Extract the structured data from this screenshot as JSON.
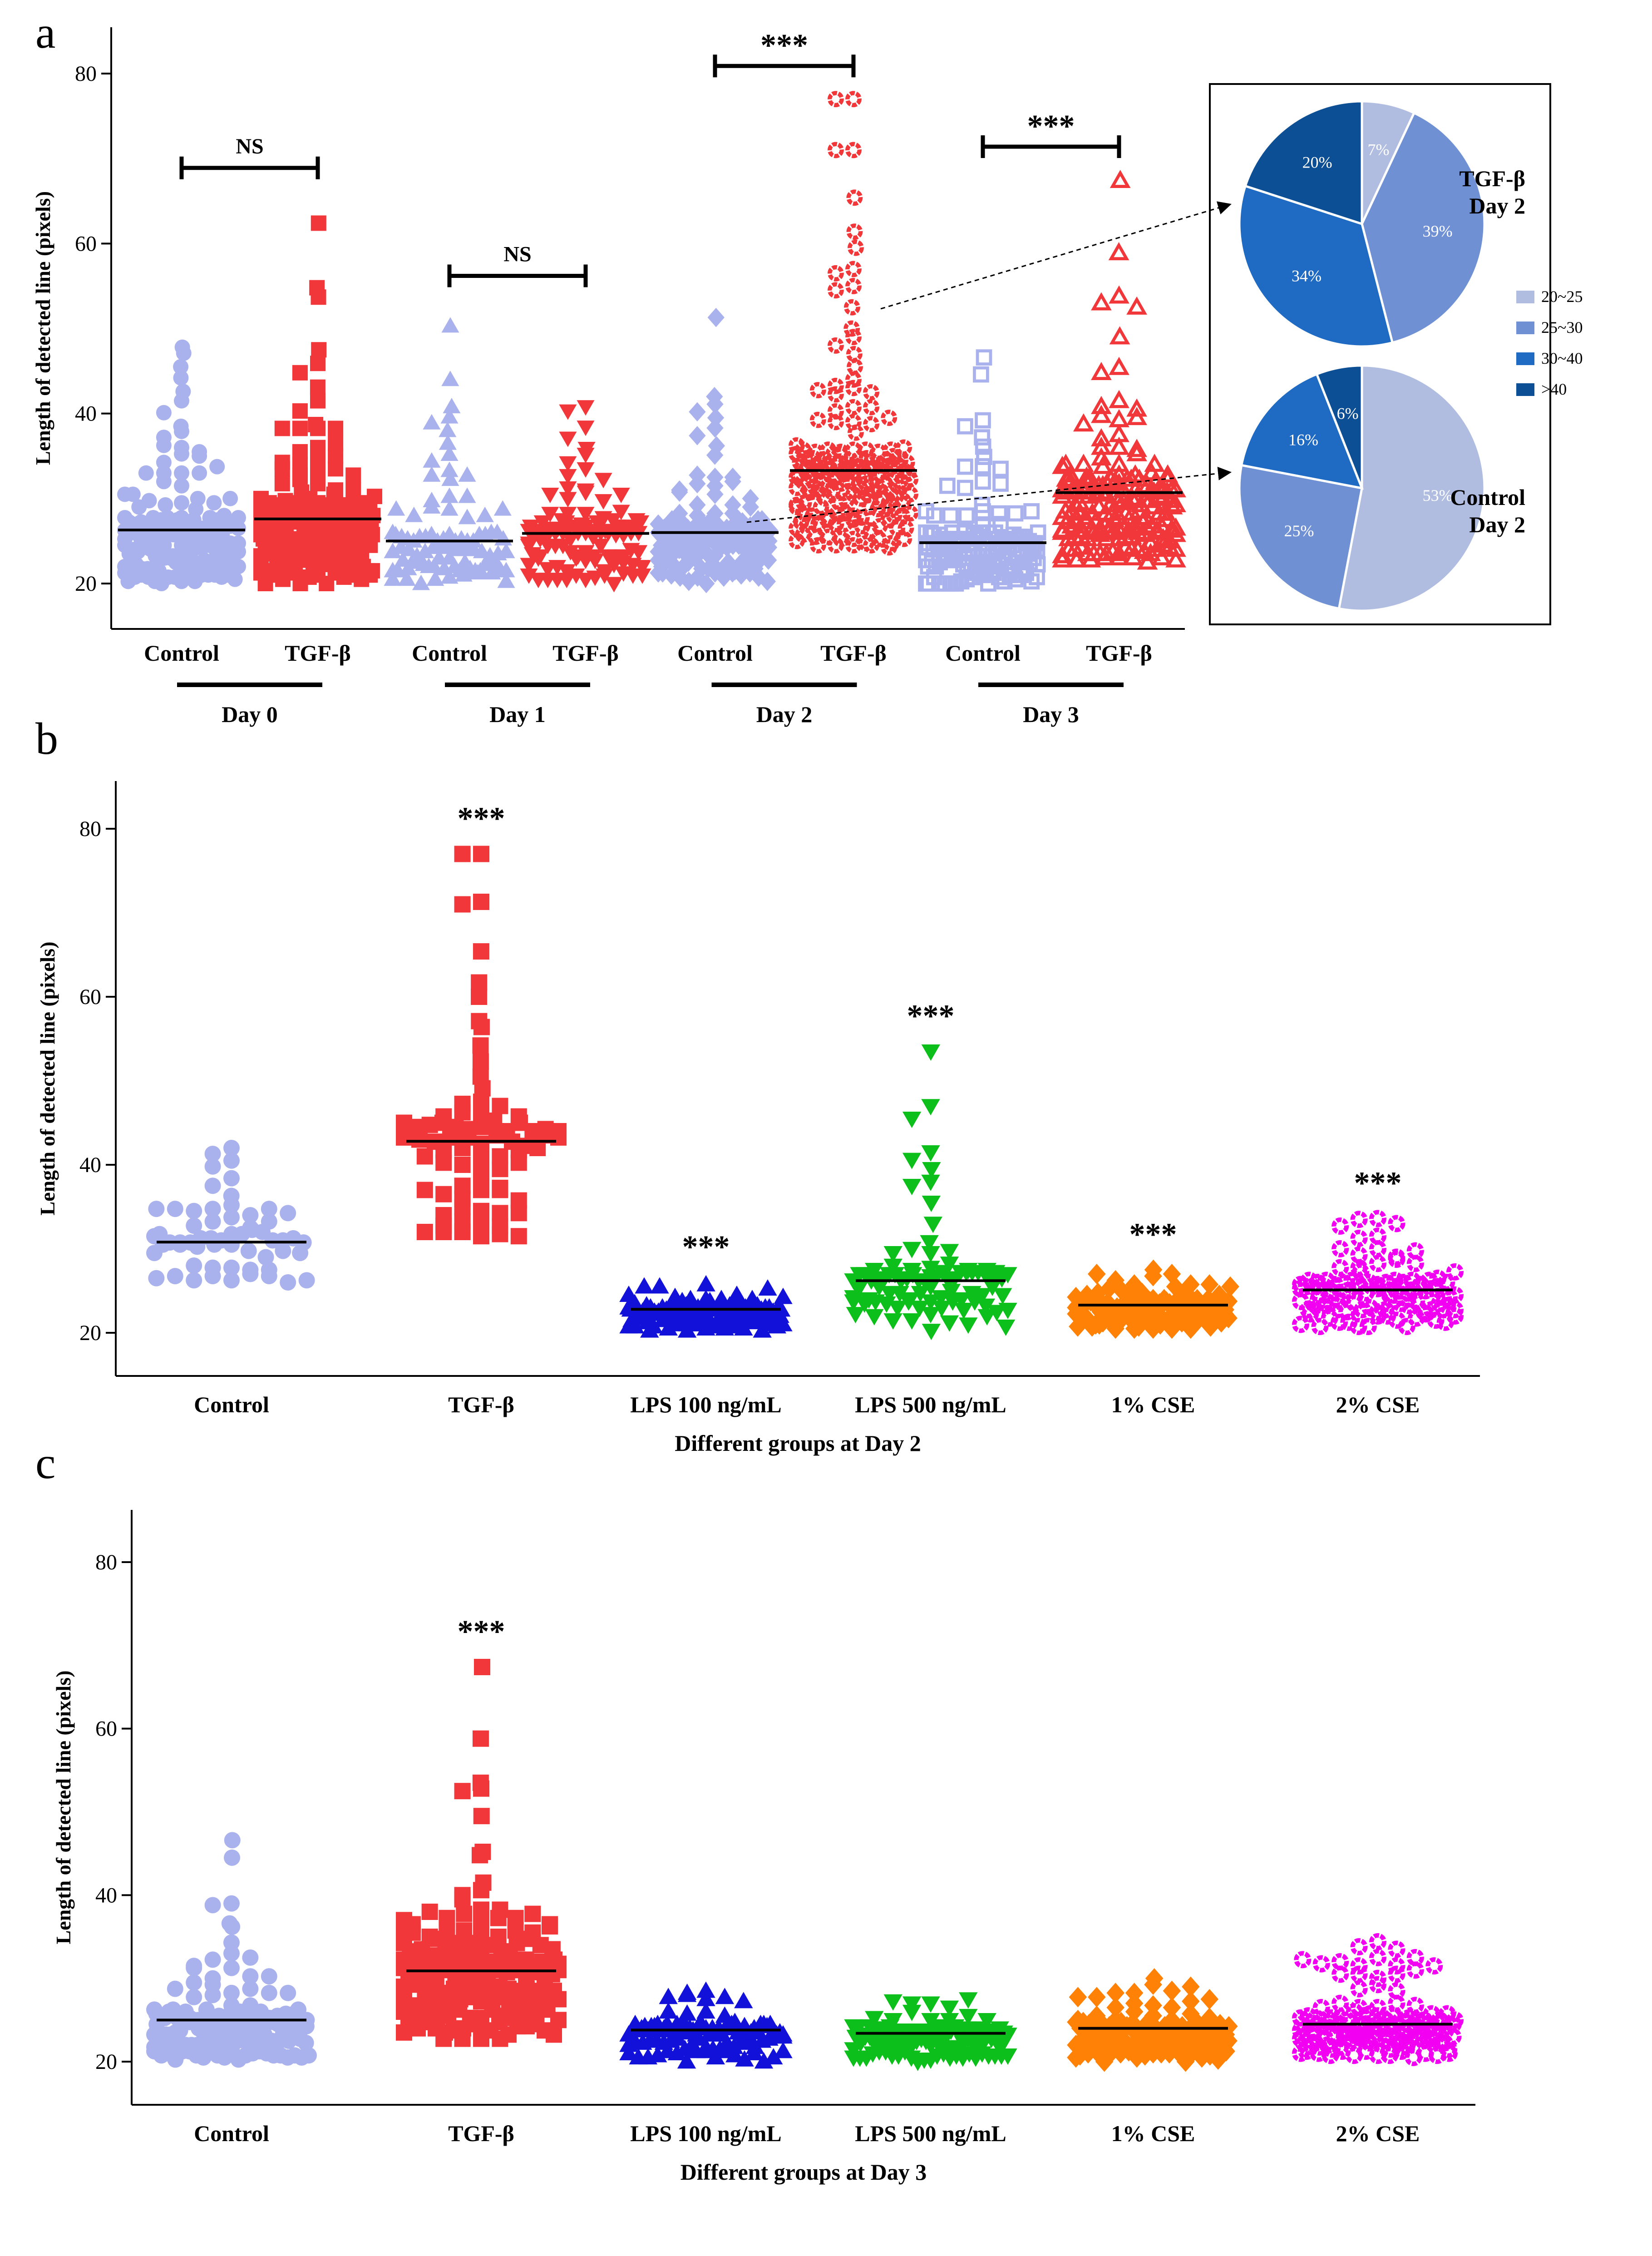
{
  "colors": {
    "control": "#aab2ee",
    "tgf": "#f2373b",
    "lps100": "#1111d9",
    "lps500": "#0cbf1a",
    "cse1": "#ff8106",
    "cse2": "#f100f1",
    "pie": [
      "#b0bde0",
      "#7090d4",
      "#1f6ac2",
      "#0d4f94"
    ]
  },
  "panels": {
    "a": {
      "letter": "a"
    },
    "b": {
      "letter": "b"
    },
    "c": {
      "letter": "c"
    }
  },
  "chart_data": [
    {
      "id": "a",
      "type": "scatter",
      "title": "",
      "ylabel": "Length of detected line (pixels)",
      "xlabel": "",
      "ylim": [
        17.5,
        82
      ],
      "yticks": [
        20,
        40,
        60,
        80
      ],
      "groups": [
        {
          "name": "Control",
          "day": "Day 0",
          "color": "control",
          "marker": "circle",
          "mean": 26.3,
          "min": 20,
          "max": 48,
          "high": [
            47.8,
            47.1,
            45.5,
            44.2,
            42.6,
            41.5,
            40.1,
            38.5,
            37.9,
            37.2
          ],
          "n": 150
        },
        {
          "name": "TGF-β",
          "day": "Day 0",
          "color": "tgf",
          "marker": "square",
          "mean": 27.6,
          "min": 20,
          "max": 62.5,
          "high": [
            62.4,
            54.8,
            53.7,
            47.5,
            45.9,
            44.8,
            43.1,
            41.5,
            40.3,
            38.7
          ],
          "n": 180
        },
        {
          "name": "Control",
          "day": "Day 1",
          "color": "control",
          "marker": "triangle",
          "mean": 25.0,
          "min": 20,
          "max": 50.5,
          "high": [
            50.3,
            44.0,
            40.8,
            39.6,
            38.9,
            38.0,
            36.5,
            35.2,
            34.4,
            33.3
          ],
          "n": 90
        },
        {
          "name": "TGF-β",
          "day": "Day 1",
          "color": "tgf",
          "marker": "triangle-down",
          "mean": 25.9,
          "min": 20,
          "max": 41,
          "high": [
            40.8,
            40.3,
            38.4,
            37.1,
            35.9,
            35.2,
            34.2,
            33.5,
            32.7
          ],
          "n": 110
        },
        {
          "name": "Control",
          "day": "Day 2",
          "color": "control",
          "marker": "diamond",
          "mean": 26.0,
          "min": 20,
          "max": 51.5,
          "high": [
            51.3,
            42.0,
            41.1,
            40.2,
            39.5,
            38.3,
            37.4,
            36.2,
            35.1
          ],
          "n": 130
        },
        {
          "name": "TGF-β",
          "day": "Day 2",
          "color": "tgf",
          "marker": "ring",
          "mean": 33.3,
          "min": 23.5,
          "max": 77.5,
          "high": [
            77.0,
            77.0,
            71.0,
            71.0,
            65.4,
            61.4,
            59.5,
            57.0,
            56.5,
            55.0,
            54.5,
            52.5,
            50.0,
            49.0,
            48.0,
            47.0,
            45.5,
            44.0
          ],
          "n": 170
        },
        {
          "name": "Control",
          "day": "Day 3",
          "color": "control",
          "marker": "square-open",
          "mean": 24.8,
          "min": 20,
          "max": 46.5,
          "high": [
            46.6,
            44.6,
            39.2,
            38.5,
            37.2,
            36.1,
            34.9,
            33.8
          ],
          "n": 140
        },
        {
          "name": "TGF-β",
          "day": "Day 3",
          "color": "tgf",
          "marker": "triangle-open",
          "mean": 30.7,
          "min": 22.5,
          "max": 67.5,
          "high": [
            67.4,
            58.9,
            53.8,
            53.0,
            52.5,
            49.0,
            45.4,
            44.8,
            41.5,
            40.8
          ],
          "n": 180
        }
      ],
      "x_category_labels": [
        "Control",
        "TGF-β",
        "Control",
        "TGF-β",
        "Control",
        "TGF-β",
        "Control",
        "TGF-β"
      ],
      "day_labels": [
        "Day 0",
        "Day 1",
        "Day 2",
        "Day 3"
      ],
      "significance": [
        {
          "day": "Day 0",
          "label": "NS",
          "y": 70.5
        },
        {
          "day": "Day 1",
          "label": "NS",
          "y": 57.8
        },
        {
          "day": "Day 2",
          "label": "***",
          "y": 82.5
        },
        {
          "day": "Day 3",
          "label": "***",
          "y": 73.0
        }
      ],
      "pies": [
        {
          "name": "TGF-β Day 2",
          "title_lines": [
            "TGF-β",
            "Day 2"
          ],
          "categories": [
            "20~25",
            "25~30",
            "30~40",
            ">40"
          ],
          "values": [
            7,
            39,
            34,
            20
          ],
          "labels": [
            "7%",
            "39%",
            "34%",
            "20%"
          ]
        },
        {
          "name": "Control Day 2",
          "title_lines": [
            "Control",
            "Day 2"
          ],
          "categories": [
            "20~25",
            "25~30",
            "30~40",
            ">40"
          ],
          "values": [
            53,
            25,
            16,
            6
          ],
          "labels": [
            "53%",
            "25%",
            "16%",
            "6%"
          ]
        }
      ],
      "legend": [
        "20~25",
        "25~30",
        "30~40",
        ">40"
      ]
    },
    {
      "id": "b",
      "type": "scatter",
      "title": "",
      "ylabel": "Length of detected line (pixels)",
      "xlabel": "Different groups at Day 2",
      "ylim": [
        17,
        83
      ],
      "yticks": [
        20,
        40,
        60,
        80
      ],
      "groups": [
        {
          "name": "Control",
          "color": "control",
          "marker": "circle",
          "mean": 30.8,
          "min": 26,
          "max": 42,
          "high": [
            42.0,
            41.3,
            40.5,
            39.8,
            38.4,
            37.5,
            36.3,
            35.2
          ],
          "n": 60,
          "sig": ""
        },
        {
          "name": "TGF-β",
          "color": "tgf",
          "marker": "square",
          "mean": 42.8,
          "min": 30,
          "max": 77,
          "high": [
            77.0,
            77.0,
            71.3,
            71.0,
            65.4,
            61.7,
            60.0,
            57.1,
            56.4,
            54.2,
            52.3,
            50.5,
            49.1,
            47.5
          ],
          "n": 80,
          "sig": "***"
        },
        {
          "name": "LPS 100 ng/mL",
          "color": "lps100",
          "marker": "triangle",
          "mean": 22.8,
          "min": 20,
          "max": 26,
          "high": [],
          "n": 110,
          "sig": "***"
        },
        {
          "name": "LPS 500 ng/mL",
          "color": "lps500",
          "marker": "triangle-down",
          "mean": 26.2,
          "min": 20,
          "max": 53.5,
          "high": [
            53.5,
            47.0,
            45.5,
            41.5,
            40.6,
            39.5,
            38.0,
            37.5,
            35.5,
            33.0,
            30.8
          ],
          "n": 90,
          "sig": "***"
        },
        {
          "name": "1% CSE",
          "color": "cse1",
          "marker": "diamond",
          "mean": 23.3,
          "min": 20.5,
          "max": 27.5,
          "high": [],
          "n": 120,
          "sig": "***"
        },
        {
          "name": "2% CSE",
          "color": "cse2",
          "marker": "ring",
          "mean": 25.1,
          "min": 20.5,
          "max": 33.5,
          "high": [
            33.6,
            33.5,
            33.0,
            32.7,
            31.5
          ],
          "n": 100,
          "sig": "***"
        }
      ]
    },
    {
      "id": "c",
      "type": "scatter",
      "title": "",
      "ylabel": "Length of detected line (pixels)",
      "xlabel": "Different groups at Day 3",
      "ylim": [
        17.5,
        86.5
      ],
      "yticks": [
        20,
        40,
        60,
        80
      ],
      "groups": [
        {
          "name": "Control",
          "color": "control",
          "marker": "circle",
          "mean": 25.0,
          "min": 20,
          "max": 47,
          "high": [
            46.6,
            44.5,
            39.0,
            38.8,
            36.6,
            36.2,
            34.3,
            33.0
          ],
          "n": 150,
          "sig": ""
        },
        {
          "name": "TGF-β",
          "color": "tgf",
          "marker": "square",
          "mean": 30.9,
          "min": 22.5,
          "max": 67.5,
          "high": [
            67.4,
            58.8,
            53.5,
            52.8,
            52.5,
            49.5,
            45.2,
            44.8,
            41.5,
            40.6,
            40.0
          ],
          "n": 190,
          "sig": "***"
        },
        {
          "name": "LPS 100 ng/mL",
          "color": "lps100",
          "marker": "triangle",
          "mean": 23.8,
          "min": 20,
          "max": 28.5,
          "high": [],
          "n": 100,
          "sig": ""
        },
        {
          "name": "LPS 500 ng/mL",
          "color": "lps500",
          "marker": "triangle-down",
          "mean": 23.4,
          "min": 20,
          "max": 28,
          "high": [],
          "n": 110,
          "sig": ""
        },
        {
          "name": "1% CSE",
          "color": "cse1",
          "marker": "diamond",
          "mean": 24.0,
          "min": 20,
          "max": 30.5,
          "high": [],
          "n": 140,
          "sig": ""
        },
        {
          "name": "2% CSE",
          "color": "cse2",
          "marker": "ring",
          "mean": 24.5,
          "min": 20.5,
          "max": 34.5,
          "high": [
            34.4,
            33.8,
            33.5,
            32.5
          ],
          "n": 140,
          "sig": ""
        }
      ]
    }
  ]
}
